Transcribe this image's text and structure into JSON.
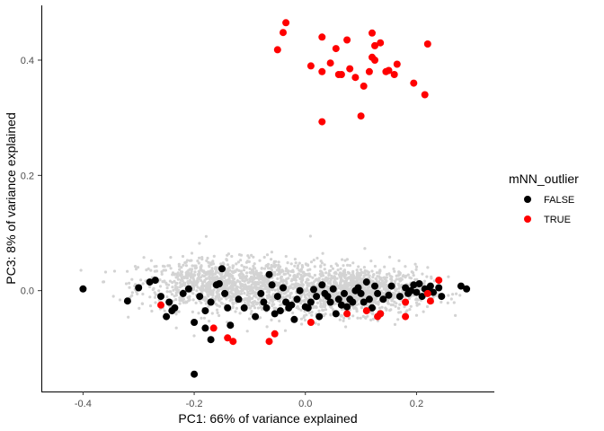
{
  "chart_data": {
    "type": "scatter",
    "xlabel": "PC1: 66% of variance explained",
    "ylabel": "PC3: 8% of variance explained",
    "xlim": [
      -0.475,
      0.34
    ],
    "ylim": [
      -0.175,
      0.495
    ],
    "x_ticks": [
      -0.4,
      -0.2,
      0.0,
      0.2
    ],
    "x_tick_labels": [
      "-0.4",
      "-0.2",
      "0.0",
      "0.2"
    ],
    "y_ticks": [
      0.0,
      0.2,
      0.4
    ],
    "y_tick_labels": [
      "0.0",
      "0.2",
      "0.4"
    ],
    "grid": false,
    "legend": {
      "title": "mNN_outlier",
      "placement": "right",
      "entries": [
        {
          "label": "FALSE",
          "color": "#000000"
        },
        {
          "label": "TRUE",
          "color": "#ff0000"
        }
      ]
    },
    "background_points": {
      "color": "#d3d3d3",
      "description_x_range": [
        -0.44,
        0.31
      ],
      "description_y_range": [
        -0.095,
        0.1
      ]
    },
    "series": [
      {
        "name": "FALSE",
        "color": "#000000",
        "points": [
          [
            -0.4,
            0.003
          ],
          [
            -0.32,
            -0.018
          ],
          [
            -0.3,
            0.005
          ],
          [
            -0.28,
            0.015
          ],
          [
            -0.27,
            0.018
          ],
          [
            -0.26,
            -0.01
          ],
          [
            -0.25,
            -0.045
          ],
          [
            -0.245,
            -0.02
          ],
          [
            -0.24,
            -0.035
          ],
          [
            -0.235,
            -0.03
          ],
          [
            -0.22,
            -0.005
          ],
          [
            -0.21,
            0.003
          ],
          [
            -0.2,
            -0.055
          ],
          [
            -0.19,
            -0.01
          ],
          [
            -0.18,
            -0.035
          ],
          [
            -0.17,
            -0.02
          ],
          [
            -0.16,
            0.01
          ],
          [
            -0.155,
            0.012
          ],
          [
            -0.15,
            0.038
          ],
          [
            -0.145,
            -0.005
          ],
          [
            -0.14,
            -0.03
          ],
          [
            -0.135,
            -0.06
          ],
          [
            -0.12,
            -0.015
          ],
          [
            -0.11,
            -0.03
          ],
          [
            -0.09,
            -0.045
          ],
          [
            -0.08,
            -0.005
          ],
          [
            -0.075,
            -0.02
          ],
          [
            -0.07,
            -0.03
          ],
          [
            -0.065,
            0.028
          ],
          [
            -0.06,
            0.01
          ],
          [
            -0.055,
            -0.04
          ],
          [
            -0.05,
            -0.01
          ],
          [
            -0.045,
            -0.035
          ],
          [
            -0.04,
            0.005
          ],
          [
            -0.035,
            -0.02
          ],
          [
            -0.03,
            -0.03
          ],
          [
            -0.025,
            -0.025
          ],
          [
            -0.02,
            -0.05
          ],
          [
            -0.015,
            -0.015
          ],
          [
            -0.01,
            0.0
          ],
          [
            0.0,
            -0.028
          ],
          [
            0.005,
            -0.03
          ],
          [
            0.01,
            -0.02
          ],
          [
            0.015,
            0.002
          ],
          [
            0.02,
            -0.01
          ],
          [
            0.025,
            -0.045
          ],
          [
            0.03,
            0.01
          ],
          [
            0.035,
            -0.005
          ],
          [
            0.04,
            -0.01
          ],
          [
            0.045,
            -0.02
          ],
          [
            0.05,
            0.003
          ],
          [
            0.055,
            -0.04
          ],
          [
            0.06,
            -0.015
          ],
          [
            0.065,
            -0.025
          ],
          [
            0.07,
            -0.005
          ],
          [
            0.075,
            -0.028
          ],
          [
            0.08,
            -0.015
          ],
          [
            0.085,
            -0.02
          ],
          [
            0.09,
            0.0
          ],
          [
            0.095,
            0.005
          ],
          [
            0.1,
            -0.005
          ],
          [
            0.105,
            -0.02
          ],
          [
            0.11,
            0.015
          ],
          [
            0.115,
            -0.015
          ],
          [
            0.12,
            -0.03
          ],
          [
            0.125,
            0.008
          ],
          [
            0.13,
            -0.005
          ],
          [
            0.135,
            -0.04
          ],
          [
            0.14,
            -0.015
          ],
          [
            0.15,
            -0.008
          ],
          [
            0.155,
            0.008
          ],
          [
            0.17,
            -0.01
          ],
          [
            0.18,
            0.005
          ],
          [
            0.185,
            -0.005
          ],
          [
            0.19,
            0.0
          ],
          [
            0.195,
            0.01
          ],
          [
            0.2,
            -0.003
          ],
          [
            0.205,
            0.012
          ],
          [
            0.21,
            -0.01
          ],
          [
            0.215,
            0.003
          ],
          [
            0.22,
            0.0
          ],
          [
            0.225,
            0.008
          ],
          [
            0.23,
            -0.003
          ],
          [
            0.24,
            0.005
          ],
          [
            0.245,
            -0.01
          ],
          [
            0.28,
            0.008
          ],
          [
            0.29,
            0.003
          ],
          [
            -0.2,
            -0.145
          ],
          [
            -0.17,
            -0.085
          ],
          [
            -0.18,
            -0.065
          ]
        ]
      },
      {
        "name": "TRUE",
        "color": "#ff0000",
        "points": [
          [
            -0.26,
            -0.025
          ],
          [
            -0.165,
            -0.065
          ],
          [
            -0.14,
            -0.082
          ],
          [
            -0.13,
            -0.088
          ],
          [
            -0.065,
            -0.088
          ],
          [
            -0.055,
            -0.075
          ],
          [
            0.01,
            -0.055
          ],
          [
            0.075,
            -0.04
          ],
          [
            0.11,
            -0.035
          ],
          [
            0.13,
            -0.045
          ],
          [
            0.135,
            -0.04
          ],
          [
            0.18,
            -0.02
          ],
          [
            0.18,
            -0.045
          ],
          [
            0.22,
            -0.005
          ],
          [
            0.225,
            -0.018
          ],
          [
            0.24,
            0.018
          ],
          [
            -0.035,
            0.465
          ],
          [
            -0.04,
            0.448
          ],
          [
            -0.05,
            0.418
          ],
          [
            0.03,
            0.44
          ],
          [
            0.055,
            0.42
          ],
          [
            0.075,
            0.435
          ],
          [
            0.12,
            0.447
          ],
          [
            0.125,
            0.425
          ],
          [
            0.135,
            0.43
          ],
          [
            0.01,
            0.39
          ],
          [
            0.03,
            0.38
          ],
          [
            0.045,
            0.395
          ],
          [
            0.06,
            0.375
          ],
          [
            0.065,
            0.375
          ],
          [
            0.08,
            0.385
          ],
          [
            0.09,
            0.37
          ],
          [
            0.105,
            0.355
          ],
          [
            0.12,
            0.405
          ],
          [
            0.125,
            0.4
          ],
          [
            0.145,
            0.38
          ],
          [
            0.15,
            0.382
          ],
          [
            0.16,
            0.375
          ],
          [
            0.165,
            0.393
          ],
          [
            0.195,
            0.36
          ],
          [
            0.215,
            0.34
          ],
          [
            0.22,
            0.428
          ],
          [
            0.1,
            0.303
          ],
          [
            0.03,
            0.293
          ],
          [
            0.115,
            0.38
          ]
        ]
      }
    ]
  }
}
